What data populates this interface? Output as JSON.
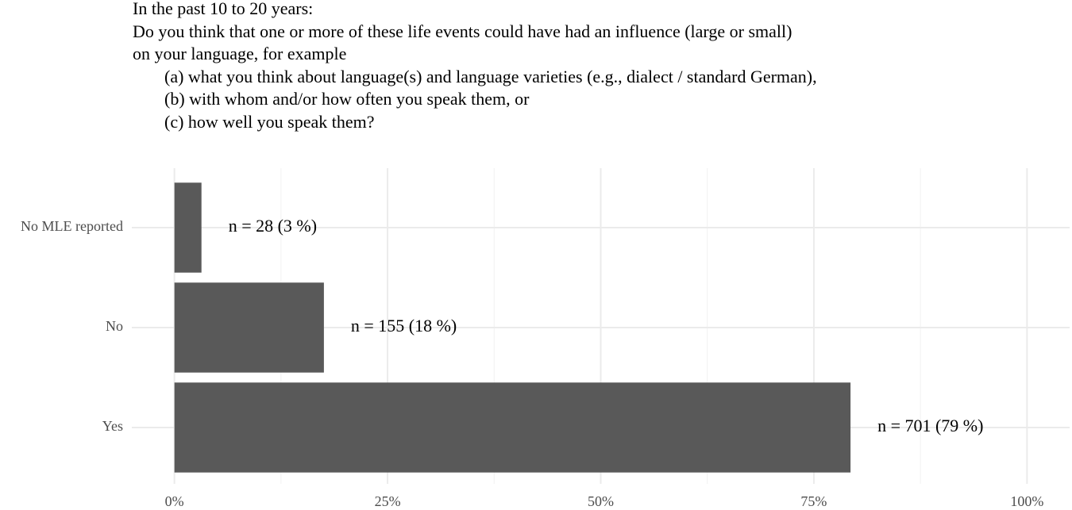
{
  "chart_data": {
    "type": "hbar",
    "title": [
      "In the past 10 to 20 years:",
      "Do you think that one or more of these life events could have had an influence (large or small)",
      "on your language, for example",
      "(a) what you think about language(s) and language varieties (e.g., dialect / standard German),",
      "(b) with whom and/or how often you speak them, or",
      "(c) how well you speak them?"
    ],
    "categories": [
      "No MLE reported",
      "No",
      "Yes"
    ],
    "values": [
      3.17,
      17.53,
      79.3
    ],
    "value_labels": [
      "n = 28 (3 %)",
      "n = 155 (18 %)",
      "n = 701 (79 %)"
    ],
    "color": "#595959",
    "xlim": [
      -5,
      105
    ],
    "xticks": [
      {
        "value": 0,
        "label": "0%"
      },
      {
        "value": 25,
        "label": "25%"
      },
      {
        "value": 50,
        "label": "50%"
      },
      {
        "value": 75,
        "label": "75%"
      },
      {
        "value": 100,
        "label": "100%"
      }
    ],
    "grid": true
  }
}
